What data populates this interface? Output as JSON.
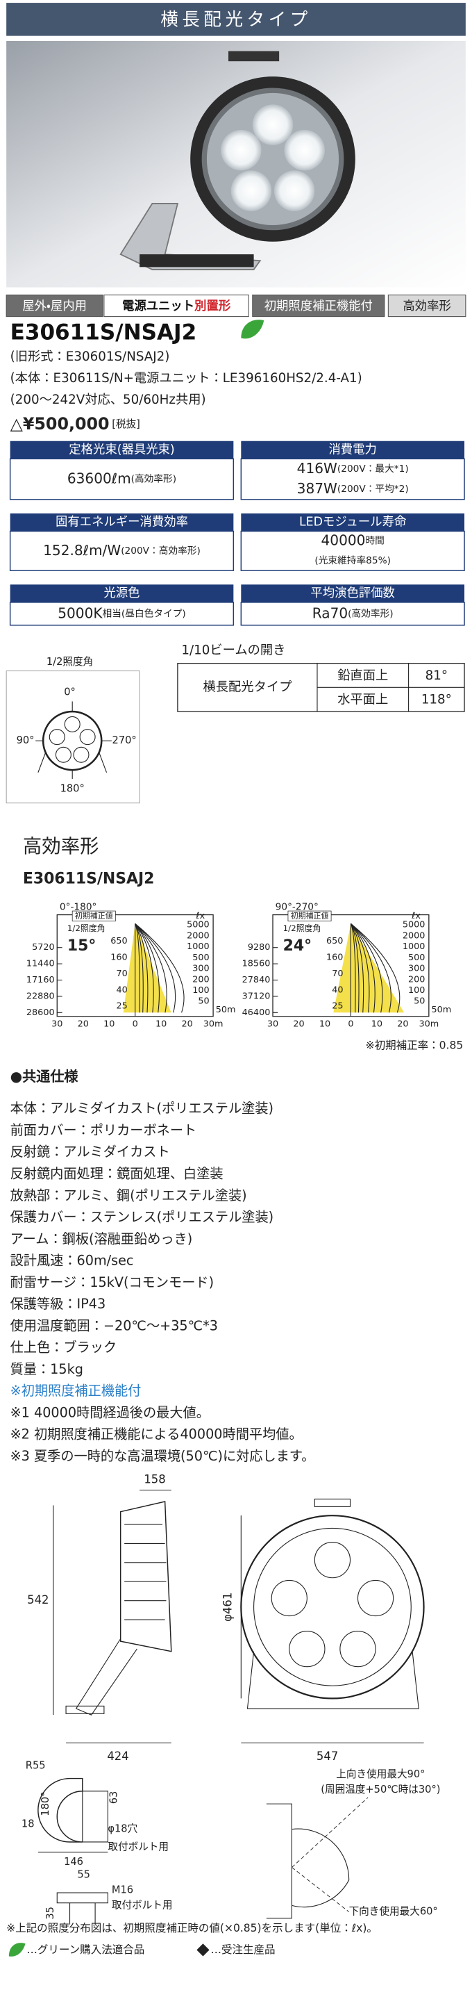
{
  "header": {
    "title": "横長配光タイプ"
  },
  "tags": [
    {
      "text": "屋外・屋内用"
    },
    {
      "text": "電源ユニット",
      "accent": "別置形"
    },
    {
      "text": "初期照度補正機能付"
    },
    {
      "text": "高効率形"
    }
  ],
  "product": {
    "model": "E30611S/NSAJ2",
    "old": "(旧形式：E30601S/NSAJ2)",
    "parts": "(本体：E30611S/N+電源ユニット：LE396160HS2/2.4-A1)",
    "voltage": "(200〜242V対応、50/60Hz共用)",
    "price": "△¥500,000",
    "tax": "[税抜]"
  },
  "specs": [
    {
      "label": "定格光束(器具光束)",
      "lines": [
        [
          "63600ℓm",
          "(高効率形)"
        ]
      ]
    },
    {
      "label": "消費電力",
      "lines": [
        [
          "416W",
          "(200V：最大*1)"
        ],
        [
          "387W",
          "(200V：平均*2)"
        ]
      ]
    },
    {
      "label": "固有エネルギー消費効率",
      "lines": [
        [
          "152.8ℓm/W",
          "(200V：高効率形)"
        ]
      ]
    },
    {
      "label": "LEDモジュール寿命",
      "lines": [
        [
          "40000",
          "時間"
        ],
        [
          "(光束維持率85%)"
        ]
      ]
    },
    {
      "label": "光源色",
      "lines": [
        [
          "5000K",
          "相当(昼白色タイプ)"
        ]
      ]
    },
    {
      "label": "平均演色評価数",
      "lines": [
        [
          "Ra70",
          "(高効率形)"
        ]
      ]
    }
  ],
  "beam": {
    "half_angle_label": "1/2照度角",
    "angles": [
      "0°",
      "90°",
      "270°",
      "180°"
    ],
    "spread_title": "1/10ビームの開き",
    "type": "横長配光タイプ",
    "rows": [
      [
        "鉛直面上",
        "81°"
      ],
      [
        "水平面上",
        "118°"
      ]
    ]
  },
  "photometric": {
    "title": "高効率形",
    "model": "E30611S/NSAJ2",
    "charts": [
      {
        "plane": "0°-180°",
        "note": "初期補正値",
        "half_label": "1/2照度角",
        "angle": "15°",
        "unit": "ℓx",
        "lux": [
          "5000",
          "2000",
          "1000",
          "500",
          "300",
          "200",
          "100",
          "50"
        ],
        "center_lux": [
          "650",
          "160",
          "70",
          "40",
          "25"
        ],
        "heights": [
          "5720",
          "11440",
          "17160",
          "22880",
          "28600"
        ],
        "x_labels": [
          "30",
          "20",
          "10",
          "0",
          "10",
          "20",
          "30m"
        ],
        "depth": "50m"
      },
      {
        "plane": "90°-270°",
        "note": "初期補正値",
        "half_label": "1/2照度角",
        "angle": "24°",
        "unit": "ℓx",
        "lux": [
          "5000",
          "2000",
          "1000",
          "500",
          "300",
          "200",
          "100",
          "50"
        ],
        "center_lux": [
          "650",
          "160",
          "70",
          "40",
          "25"
        ],
        "heights": [
          "9280",
          "18560",
          "27840",
          "37120",
          "46400"
        ],
        "x_labels": [
          "30",
          "20",
          "10",
          "0",
          "10",
          "20",
          "30m"
        ],
        "depth": "50m"
      }
    ],
    "correction": "※初期補正率：0.85"
  },
  "common": {
    "title": "●共通仕様",
    "lines": [
      "本体：アルミダイカスト(ポリエステル塗装)",
      "前面カバー：ポリカーボネート",
      "反射鏡：アルミダイカスト",
      "反射鏡内面処理：鏡面処理、白塗装",
      "放熱部：アルミ、鋼(ポリエステル塗装)",
      "保護カバー：ステンレス(ポリエステル塗装)",
      "アーム：鋼板(溶融亜鉛めっき)",
      "設計風速：60m/sec",
      "耐雷サージ：15kV(コモンモード)",
      "保護等級：IP43",
      "使用温度範囲：−20℃〜+35℃*3",
      "仕上色：ブラック",
      "質量：15kg"
    ],
    "feature": "※初期照度補正機能付",
    "notes": [
      "※1 40000時間経過後の最大値。",
      "※2 初期照度補正機能による40000時間平均値。",
      "※3 夏季の一時的な高温環境(50℃)に対応します。"
    ]
  },
  "drawings": {
    "depth": "158",
    "height": "542",
    "arm": "424",
    "diameter": "φ461",
    "width": "547",
    "bracket": {
      "radius": "R55",
      "angle": "180°",
      "h1": "63",
      "h2": "18",
      "hole": "φ18穴",
      "hole_note": "取付ボルト用",
      "length": "146",
      "bolt_w": "55",
      "bolt": "M16",
      "bolt_note": "取付ボルト用",
      "bolt_h": "35"
    },
    "tilt": {
      "up": "上向き使用最大90°",
      "up_note": "(周囲温度+50℃時は30°)",
      "down": "下向き使用最大60°"
    }
  },
  "footer": {
    "note": "※上記の照度分布図は、初期照度補正時の値(×0.85)を示します(単位：ℓx)。",
    "green": "…グリーン購入法適合品",
    "order": "…受注生産品"
  }
}
